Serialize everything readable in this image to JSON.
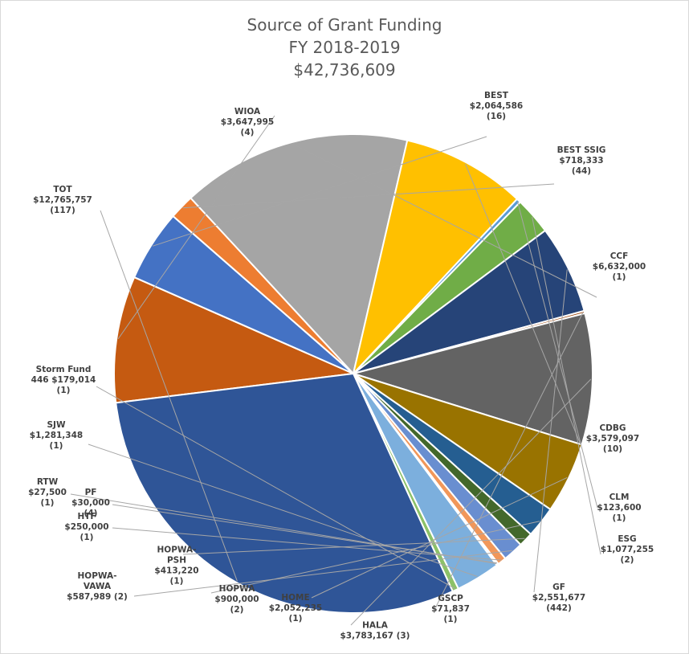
{
  "chart_data": {
    "type": "pie",
    "title": "Source of Grant Funding",
    "subtitle": "FY 2018-2019",
    "total_label": "$42,736,609",
    "slices": [
      {
        "name": "WIOA",
        "value": 3647995,
        "amount": "$3,647,995",
        "count": "(4)",
        "color": "#c55a11"
      },
      {
        "name": "BEST",
        "value": 2064586,
        "amount": "$2,064,586",
        "count": "(16)",
        "color": "#4472c4"
      },
      {
        "name": "BEST SSIG",
        "value": 718333,
        "amount": "$718,333",
        "count": "(44)",
        "color": "#ed7d31"
      },
      {
        "name": "CCF",
        "value": 6632000,
        "amount": "$6,632,000",
        "count": "(1)",
        "color": "#a5a5a5"
      },
      {
        "name": "CDBG",
        "value": 3579097,
        "amount": "$3,579,097",
        "count": "(10)",
        "color": "#ffc000"
      },
      {
        "name": "CLM",
        "value": 123600,
        "amount": "$123,600",
        "count": "(1)",
        "color": "#5b9bd5"
      },
      {
        "name": "ESG",
        "value": 1077255,
        "amount": "$1,077,255",
        "count": "(2)",
        "color": "#70ad47"
      },
      {
        "name": "GF",
        "value": 2551677,
        "amount": "$2,551,677",
        "count": "(442)",
        "color": "#264478"
      },
      {
        "name": "GSCP",
        "value": 71837,
        "amount": "$71,837",
        "count": "(1)",
        "color": "#9e480e"
      },
      {
        "name": "HALA",
        "value": 3783167,
        "amount": "$3,783,167",
        "count": "(3)",
        "color": "#636363"
      },
      {
        "name": "HOME",
        "value": 2052235,
        "amount": "$2,052,235",
        "count": "(1)",
        "color": "#997300"
      },
      {
        "name": "HOPWA",
        "value": 900000,
        "amount": "$900,000",
        "count": "(2)",
        "color": "#255e91"
      },
      {
        "name": "HOPWA-PSH",
        "value": 413220,
        "amount": "$413,220",
        "count": "(1)",
        "color": "#43682b"
      },
      {
        "name": "HOPWA-VAWA",
        "value": 587989,
        "amount": "$587,989",
        "count": "(2)",
        "color": "#698ed0"
      },
      {
        "name": "HTF",
        "value": 250000,
        "amount": "$250,000",
        "count": "(1)",
        "color": "#f1975a"
      },
      {
        "name": "PF",
        "value": 30000,
        "amount": "$30,000",
        "count": "(4)",
        "color": "#b7b7b7"
      },
      {
        "name": "RTW",
        "value": 27500,
        "amount": "$27,500",
        "count": "(1)",
        "color": "#ffcd33"
      },
      {
        "name": "SJW",
        "value": 1281348,
        "amount": "$1,281,348",
        "count": "(1)",
        "color": "#7cafdd"
      },
      {
        "name": "Storm Fund 446",
        "value": 179014,
        "amount": "$179,014",
        "count": "(1)",
        "color": "#8cc168"
      },
      {
        "name": "TOT",
        "value": 12765757,
        "amount": "$12,765,757",
        "count": "(117)",
        "color": "#2f5597"
      }
    ],
    "labels": [
      {
        "lines": [
          "WIOA",
          "$3,647,995",
          "(4)"
        ]
      },
      {
        "lines": [
          "BEST",
          "$2,064,586",
          "(16)"
        ]
      },
      {
        "lines": [
          "BEST SSIG",
          "$718,333",
          "(44)"
        ]
      },
      {
        "lines": [
          "CCF",
          "$6,632,000",
          "(1)"
        ]
      },
      {
        "lines": [
          "CDBG",
          "$3,579,097",
          "(10)"
        ]
      },
      {
        "lines": [
          "CLM",
          "$123,600",
          "(1)"
        ]
      },
      {
        "lines": [
          "ESG",
          "$1,077,255",
          "(2)"
        ]
      },
      {
        "lines": [
          "GF",
          "$2,551,677",
          "(442)"
        ]
      },
      {
        "lines": [
          "GSCP",
          "$71,837",
          "(1)"
        ]
      },
      {
        "lines": [
          "HALA",
          "$3,783,167 (3)"
        ]
      },
      {
        "lines": [
          "HOME",
          "$2,052,235",
          "(1)"
        ]
      },
      {
        "lines": [
          "HOPWA",
          "$900,000",
          "(2)"
        ]
      },
      {
        "lines": [
          "HOPWA-",
          "PSH",
          "$413,220",
          "(1)"
        ]
      },
      {
        "lines": [
          "HOPWA-",
          "VAWA",
          "$587,989 (2)"
        ]
      },
      {
        "lines": [
          "HTF",
          "$250,000",
          "(1)"
        ]
      },
      {
        "lines": [
          "PF",
          "$30,000",
          "(4)"
        ]
      },
      {
        "lines": [
          "RTW",
          "$27,500",
          "(1)"
        ]
      },
      {
        "lines": [
          "SJW",
          "$1,281,348",
          "(1)"
        ]
      },
      {
        "lines": [
          "Storm Fund",
          "446 $179,014",
          "(1)"
        ]
      },
      {
        "lines": [
          "TOT",
          "$12,765,757",
          "(117)"
        ]
      }
    ]
  }
}
